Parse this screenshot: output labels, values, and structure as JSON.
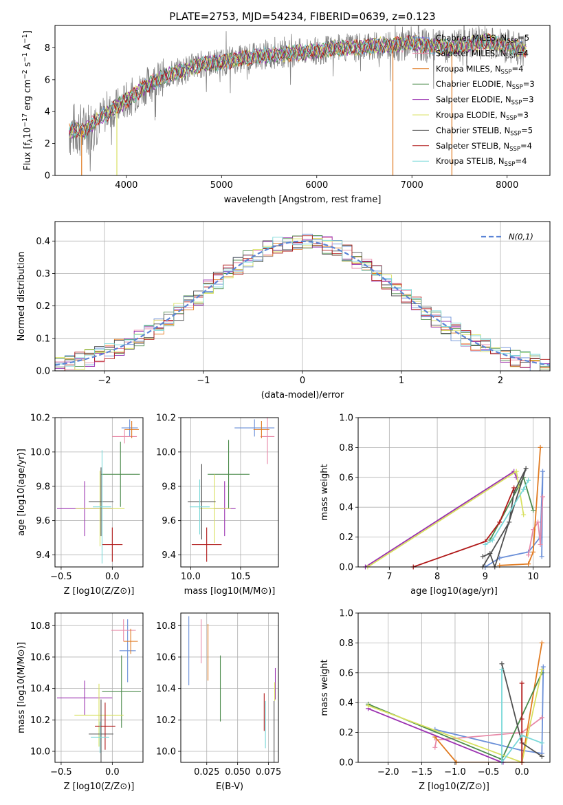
{
  "title": "PLATE=2753, MJD=54234, FIBERID=0639, z=0.123",
  "colors": {
    "Chabrier MILES": "#6a8fd8",
    "Salpeter MILES": "#e88aa8",
    "Kroupa MILES": "#e07a20",
    "Chabrier ELODIE": "#4a8a4a",
    "Salpeter ELODIE": "#9a30b0",
    "Kroupa ELODIE": "#d8e060",
    "Chabrier STELIB": "#505050",
    "Salpeter STELIB": "#b01818",
    "Kroupa STELIB": "#78d8d8",
    "data": "#808080",
    "normal": "#5b84d6"
  },
  "chart_data": [
    {
      "id": "spectrum",
      "type": "line",
      "xlabel": "wavelength [Angstrom, rest frame]",
      "ylabel": "Flux [f_λ 10^-17 erg cm^-2 s^-1 A^-1]",
      "xlim": [
        3250,
        8450
      ],
      "ylim": [
        0,
        9.4
      ],
      "xticks": [
        4000,
        5000,
        6000,
        7000,
        8000
      ],
      "yticks": [
        0,
        2,
        4,
        6,
        8
      ],
      "legend": [
        {
          "text": "Chabrier MILES, N_SSP=5",
          "main": "Chabrier MILES, N",
          "sub": "SSP",
          "tail": "=5"
        },
        {
          "text": "Salpeter MILES, N_SSP=4",
          "main": "Salpeter MILES, N",
          "sub": "SSP",
          "tail": "=4"
        },
        {
          "text": "Kroupa MILES, N_SSP=4",
          "main": "Kroupa MILES, N",
          "sub": "SSP",
          "tail": "=4"
        },
        {
          "text": "Chabrier ELODIE, N_SSP=3",
          "main": "Chabrier ELODIE, N",
          "sub": "SSP",
          "tail": "=3"
        },
        {
          "text": "Salpeter ELODIE, N_SSP=3",
          "main": "Salpeter ELODIE, N",
          "sub": "SSP",
          "tail": "=3"
        },
        {
          "text": "Kroupa ELODIE, N_SSP=3",
          "main": "Kroupa ELODIE, N",
          "sub": "SSP",
          "tail": "=3"
        },
        {
          "text": "Chabrier STELIB, N_SSP=5",
          "main": "Chabrier STELIB, N",
          "sub": "SSP",
          "tail": "=5"
        },
        {
          "text": "Salpeter STELIB, N_SSP=4",
          "main": "Salpeter STELIB, N",
          "sub": "SSP",
          "tail": "=4"
        },
        {
          "text": "Kroupa STELIB, N_SSP=4",
          "main": "Kroupa STELIB, N",
          "sub": "SSP",
          "tail": "=4"
        }
      ],
      "continuum": {
        "x": [
          3400,
          3500,
          3550,
          3650,
          3750,
          3850,
          3950,
          4050,
          4200,
          4400,
          4600,
          4800,
          5000,
          5200,
          5400,
          5600,
          5800,
          6000,
          6200,
          6400,
          6600,
          6800,
          7000,
          7200,
          7400,
          7600,
          7800,
          8000,
          8200
        ],
        "y": [
          2.8,
          2.9,
          2.7,
          3.3,
          3.7,
          4.1,
          4.5,
          4.9,
          5.6,
          6.2,
          6.6,
          7.0,
          7.1,
          7.3,
          7.5,
          7.6,
          7.7,
          7.8,
          8.0,
          8.0,
          8.1,
          8.2,
          8.3,
          8.1,
          8.0,
          8.2,
          8.4,
          8.1,
          7.9
        ]
      }
    },
    {
      "id": "residuals",
      "type": "histogram",
      "xlabel": "(data-model)/error",
      "ylabel": "Normed distribution",
      "xlim": [
        -2.5,
        2.5
      ],
      "ylim": [
        0,
        0.46
      ],
      "xticks": [
        -2,
        -1,
        0,
        1,
        2
      ],
      "yticks": [
        0,
        0.1,
        0.2,
        0.3,
        0.4
      ],
      "legend": "N(0,1)",
      "bin_width": 0.1
    },
    {
      "id": "age_vs_Z",
      "type": "errorbar",
      "xlabel": "Z [log10(Z/Z⊙)]",
      "ylabel": "age [log10(age/yr)]",
      "xlim": [
        -0.56,
        0.3
      ],
      "ylim": [
        9.33,
        10.2
      ],
      "xticks": [
        -0.5,
        0.0
      ],
      "yticks": [
        9.4,
        9.6,
        9.8,
        10.0,
        10.2
      ],
      "points": [
        {
          "m": "Chabrier MILES",
          "x": 0.17,
          "y": 10.14,
          "xe": 0.08,
          "ye": 0.05
        },
        {
          "m": "Salpeter MILES",
          "x": 0.12,
          "y": 10.09,
          "xe": 0.12,
          "ye": 0.04
        },
        {
          "m": "Kroupa MILES",
          "x": 0.19,
          "y": 10.13,
          "xe": 0.07,
          "ye": 0.05
        },
        {
          "m": "Chabrier ELODIE",
          "x": 0.08,
          "y": 9.87,
          "xe": 0.19,
          "ye": 0.19
        },
        {
          "m": "Salpeter ELODIE",
          "x": -0.27,
          "y": 9.67,
          "xe": 0.27,
          "ye": 0.16
        },
        {
          "m": "Kroupa ELODIE",
          "x": -0.12,
          "y": 9.67,
          "xe": 0.24,
          "ye": 0.22
        },
        {
          "m": "Chabrier STELIB",
          "x": -0.11,
          "y": 9.71,
          "xe": 0.12,
          "ye": 0.2
        },
        {
          "m": "Salpeter STELIB",
          "x": 0.0,
          "y": 9.46,
          "xe": 0.1,
          "ye": 0.1
        },
        {
          "m": "Kroupa STELIB",
          "x": -0.1,
          "y": 9.68,
          "xe": 0.09,
          "ye": 0.33
        }
      ]
    },
    {
      "id": "age_vs_mass",
      "type": "errorbar",
      "xlabel": "mass [log10(M/M⊙)]",
      "ylabel": "",
      "xlim": [
        9.9,
        10.88
      ],
      "ylim": [
        9.33,
        10.2
      ],
      "xticks": [
        10.0,
        10.5
      ],
      "yticks": [
        9.4,
        9.6,
        9.8,
        10.0,
        10.2
      ],
      "points": [
        {
          "m": "Chabrier MILES",
          "x": 10.64,
          "y": 10.14,
          "xe": 0.2,
          "ye": 0.05
        },
        {
          "m": "Salpeter MILES",
          "x": 10.77,
          "y": 10.09,
          "xe": 0.07,
          "ye": 0.16
        },
        {
          "m": "Kroupa MILES",
          "x": 10.71,
          "y": 10.13,
          "xe": 0.08,
          "ye": 0.05
        },
        {
          "m": "Chabrier ELODIE",
          "x": 10.38,
          "y": 9.87,
          "xe": 0.21,
          "ye": 0.2
        },
        {
          "m": "Salpeter ELODIE",
          "x": 10.34,
          "y": 9.67,
          "xe": 0.11,
          "ye": 0.16
        },
        {
          "m": "Kroupa ELODIE",
          "x": 10.24,
          "y": 9.67,
          "xe": 0.16,
          "ye": 0.2
        },
        {
          "m": "Chabrier STELIB",
          "x": 10.11,
          "y": 9.71,
          "xe": 0.14,
          "ye": 0.22
        },
        {
          "m": "Salpeter STELIB",
          "x": 10.16,
          "y": 9.46,
          "xe": 0.15,
          "ye": 0.1
        },
        {
          "m": "Kroupa STELIB",
          "x": 10.09,
          "y": 9.68,
          "xe": 0.1,
          "ye": 0.16
        }
      ]
    },
    {
      "id": "mass_weight_vs_age",
      "type": "line",
      "xlabel": "age [log10(age/yr)]",
      "ylabel": "mass weight",
      "xlim": [
        6.35,
        10.35
      ],
      "ylim": [
        0,
        1.0
      ],
      "xticks": [
        7,
        8,
        9,
        10
      ],
      "yticks": [
        0.0,
        0.2,
        0.4,
        0.6,
        0.8,
        1.0
      ],
      "series": [
        {
          "m": "Chabrier MILES",
          "x": [
            9.0,
            9.3,
            9.9,
            10.15,
            10.2,
            10.18
          ],
          "y": [
            0.0,
            0.06,
            0.1,
            0.2,
            0.64,
            0.07
          ]
        },
        {
          "m": "Salpeter MILES",
          "x": [
            9.9,
            10.0,
            10.1,
            10.15,
            10.2
          ],
          "y": [
            0.08,
            0.25,
            0.3,
            0.15,
            0.47
          ]
        },
        {
          "m": "Kroupa MILES",
          "x": [
            9.3,
            9.9,
            10.0,
            10.15
          ],
          "y": [
            0.01,
            0.02,
            0.1,
            0.8
          ]
        },
        {
          "m": "Chabrier ELODIE",
          "x": [
            9.1,
            9.8,
            10.0
          ],
          "y": [
            0.18,
            0.6,
            0.38
          ]
        },
        {
          "m": "Salpeter ELODIE",
          "x": [
            6.5,
            9.6,
            9.65
          ],
          "y": [
            0.0,
            0.64,
            0.6
          ]
        },
        {
          "m": "Kroupa ELODIE",
          "x": [
            6.55,
            9.65,
            9.8
          ],
          "y": [
            0.0,
            0.64,
            0.35
          ]
        },
        {
          "m": "Chabrier STELIB",
          "x": [
            8.95,
            9.1,
            9.2,
            9.85,
            9.6,
            9.5,
            8.95
          ],
          "y": [
            0.07,
            0.09,
            0.0,
            0.66,
            0.5,
            0.3,
            0.0
          ]
        },
        {
          "m": "Salpeter STELIB",
          "x": [
            7.5,
            9.0,
            9.3,
            9.6
          ],
          "y": [
            0.0,
            0.17,
            0.3,
            0.53
          ]
        },
        {
          "m": "Kroupa STELIB",
          "x": [
            9.0,
            9.15,
            9.8,
            9.9
          ],
          "y": [
            0.15,
            0.18,
            0.52,
            0.58
          ]
        }
      ]
    },
    {
      "id": "mass_vs_Z",
      "type": "errorbar",
      "xlabel": "Z [log10(Z/Z⊙)]",
      "ylabel": "mass [log10(M/M⊙)]",
      "xlim": [
        -0.56,
        0.3
      ],
      "ylim": [
        9.93,
        10.88
      ],
      "xticks": [
        -0.5,
        0.0
      ],
      "yticks": [
        10.0,
        10.2,
        10.4,
        10.6,
        10.8
      ],
      "points": [
        {
          "m": "Chabrier MILES",
          "x": 0.15,
          "y": 10.64,
          "xe": 0.08,
          "ye": 0.2
        },
        {
          "m": "Salpeter MILES",
          "x": 0.11,
          "y": 10.77,
          "xe": 0.12,
          "ye": 0.07
        },
        {
          "m": "Kroupa MILES",
          "x": 0.18,
          "y": 10.7,
          "xe": 0.07,
          "ye": 0.08
        },
        {
          "m": "Chabrier ELODIE",
          "x": 0.09,
          "y": 10.38,
          "xe": 0.19,
          "ye": 0.23
        },
        {
          "m": "Salpeter ELODIE",
          "x": -0.27,
          "y": 10.34,
          "xe": 0.27,
          "ye": 0.11
        },
        {
          "m": "Kroupa ELODIE",
          "x": -0.13,
          "y": 10.23,
          "xe": 0.24,
          "ye": 0.2
        },
        {
          "m": "Chabrier STELIB",
          "x": -0.11,
          "y": 10.11,
          "xe": 0.12,
          "ye": 0.22
        },
        {
          "m": "Salpeter STELIB",
          "x": -0.07,
          "y": 10.16,
          "xe": 0.1,
          "ye": 0.15
        },
        {
          "m": "Kroupa STELIB",
          "x": -0.12,
          "y": 10.09,
          "xe": 0.09,
          "ye": 0.1
        }
      ]
    },
    {
      "id": "mass_vs_ebv",
      "type": "errorbar",
      "xlabel": "E(B-V)",
      "ylabel": "",
      "xlim": [
        0.004,
        0.083
      ],
      "ylim": [
        9.93,
        10.88
      ],
      "xticks": [
        0.025,
        0.05,
        0.075
      ],
      "xticklabels": [
        "0.025",
        "0.050",
        "0.075"
      ],
      "yticks": [
        10.0,
        10.2,
        10.4,
        10.6,
        10.8
      ],
      "points": [
        {
          "m": "Chabrier MILES",
          "x": 0.0105,
          "y": 10.64,
          "xe": 0,
          "ye": 0.22
        },
        {
          "m": "Salpeter MILES",
          "x": 0.0205,
          "y": 10.7,
          "xe": 0,
          "ye": 0.14
        },
        {
          "m": "Kroupa MILES",
          "x": 0.026,
          "y": 10.63,
          "xe": 0,
          "ye": 0.18
        },
        {
          "m": "Chabrier ELODIE",
          "x": 0.036,
          "y": 10.4,
          "xe": 0,
          "ye": 0.21
        },
        {
          "m": "Salpeter ELODIE",
          "x": 0.0805,
          "y": 10.43,
          "xe": 0,
          "ye": 0.1
        },
        {
          "m": "Kroupa ELODIE",
          "x": 0.08,
          "y": 10.38,
          "xe": 0,
          "ye": 0.06
        },
        {
          "m": "Chabrier STELIB",
          "x": 0.0795,
          "y": 10.11,
          "xe": 0,
          "ye": 0.21
        },
        {
          "m": "Salpeter STELIB",
          "x": 0.0715,
          "y": 10.25,
          "xe": 0,
          "ye": 0.12
        },
        {
          "m": "Kroupa STELIB",
          "x": 0.0725,
          "y": 10.17,
          "xe": 0,
          "ye": 0.15
        }
      ]
    },
    {
      "id": "mass_weight_vs_Z",
      "type": "line",
      "xlabel": "Z [log10(Z/Z⊙)]",
      "ylabel": "mass weight",
      "xlim": [
        -2.45,
        0.42
      ],
      "ylim": [
        0,
        1.0
      ],
      "xticks": [
        -2.0,
        -1.5,
        -1.0,
        -0.5,
        0.0
      ],
      "yticks": [
        0.0,
        0.2,
        0.4,
        0.6,
        0.8,
        1.0
      ],
      "series": [
        {
          "m": "Chabrier MILES",
          "x": [
            -1.3,
            0.0,
            0.3,
            0.32
          ],
          "y": [
            0.22,
            0.08,
            0.06,
            0.64
          ]
        },
        {
          "m": "Salpeter MILES",
          "x": [
            -1.3,
            -1.28,
            0.0,
            0.3
          ],
          "y": [
            0.1,
            0.15,
            0.2,
            0.3
          ]
        },
        {
          "m": "Kroupa MILES",
          "x": [
            -1.3,
            -0.98,
            0.0,
            0.3
          ],
          "y": [
            0.17,
            0.0,
            0.0,
            0.8
          ]
        },
        {
          "m": "Chabrier ELODIE",
          "x": [
            -2.3,
            -0.3,
            0.3
          ],
          "y": [
            0.39,
            0.02,
            0.6
          ]
        },
        {
          "m": "Salpeter ELODIE",
          "x": [
            -2.3,
            -0.3,
            -0.28
          ],
          "y": [
            0.36,
            0.0,
            0.0
          ]
        },
        {
          "m": "Kroupa ELODIE",
          "x": [
            -2.3,
            0.0,
            0.3
          ],
          "y": [
            0.38,
            0.0,
            0.62
          ]
        },
        {
          "m": "Chabrier STELIB",
          "x": [
            -0.3,
            0.0,
            0.3
          ],
          "y": [
            0.66,
            0.13,
            0.04
          ]
        },
        {
          "m": "Salpeter STELIB",
          "x": [
            0.0,
            0.0,
            0.0,
            0.0
          ],
          "y": [
            0.53,
            0.29,
            0.18,
            0.0
          ]
        },
        {
          "m": "Kroupa STELIB",
          "x": [
            -0.3,
            -0.3,
            0.0,
            0.3
          ],
          "y": [
            0.62,
            0.0,
            0.18,
            0.13
          ]
        }
      ]
    }
  ]
}
